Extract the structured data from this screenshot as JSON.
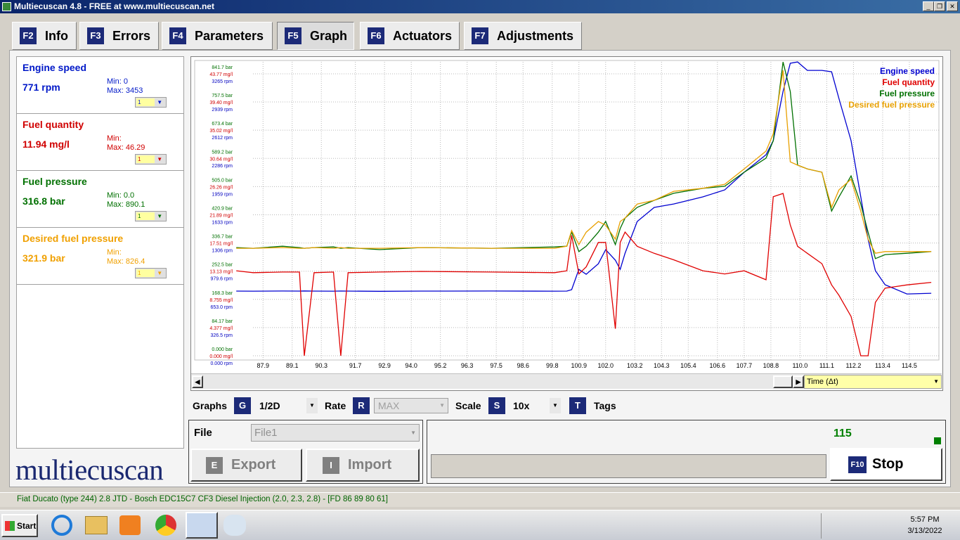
{
  "window": {
    "title": "Multiecuscan 4.8 - FREE at www.multiecuscan.net"
  },
  "tabs": [
    {
      "key": "F2",
      "label": "Info"
    },
    {
      "key": "F3",
      "label": "Errors"
    },
    {
      "key": "F4",
      "label": "Parameters"
    },
    {
      "key": "F5",
      "label": "Graph"
    },
    {
      "key": "F6",
      "label": "Actuators"
    },
    {
      "key": "F7",
      "label": "Adjustments"
    }
  ],
  "sensors": [
    {
      "name": "Engine speed",
      "value": "771 rpm",
      "min": "Min: 0",
      "max": "Max: 3453",
      "selector": "1",
      "color": "#0018c8"
    },
    {
      "name": "Fuel quantity",
      "value": "11.94 mg/l",
      "min": "Min:",
      "max": "Max: 46.29",
      "selector": "1",
      "color": "#d00000"
    },
    {
      "name": "Fuel pressure",
      "value": "316.8 bar",
      "min": "Min: 0.0",
      "max": "Max: 890.1",
      "selector": "1",
      "color": "#007000"
    },
    {
      "name": "Desired fuel pressure",
      "value": "321.9 bar",
      "min": "Min:",
      "max": "Max: 826.4",
      "selector": "1",
      "color": "#f0a000"
    }
  ],
  "chart_data": {
    "type": "line",
    "legend": "top-right",
    "grid": true,
    "x": [
      86.8,
      87.5,
      88.7,
      89.4,
      89.6,
      90.0,
      90.8,
      91.1,
      91.4,
      92.7,
      94.4,
      97.3,
      99.9,
      100.4,
      100.6,
      100.9,
      101.2,
      101.7,
      102.0,
      102.4,
      102.6,
      102.8,
      103.3,
      104.0,
      104.8,
      106.0,
      106.9,
      107.7,
      108.6,
      108.9,
      109.3,
      109.6,
      109.9,
      110.3,
      110.9,
      111.3,
      111.6,
      112.1,
      112.5,
      112.8,
      113.1,
      113.5,
      114.4,
      115.4
    ],
    "xlim": [
      85.0,
      115.6
    ],
    "xticks": [
      87.9,
      89.1,
      90.3,
      91.7,
      92.9,
      {
        "value": 94,
        "label": "94.0"
      },
      95.2,
      96.3,
      97.5,
      98.6,
      99.8,
      100.9,
      {
        "value": 102,
        "label": "102.0"
      },
      103.2,
      104.3,
      105.4,
      106.6,
      107.7,
      108.8,
      {
        "value": 110,
        "label": "110.0"
      },
      111.1,
      112.2,
      113.4,
      114.5
    ],
    "axes": [
      {
        "color": "#0000c0",
        "ylim": [
          0,
          3265
        ],
        "yticks": [
          {
            "value": 0,
            "label": "0.000 rpm"
          },
          {
            "value": 326.5,
            "label": "326.5 rpm"
          },
          {
            "value": 653,
            "label": "653.0 rpm"
          },
          {
            "value": 979.6,
            "label": "979.6 rpm"
          },
          {
            "value": 1306,
            "label": "1306 rpm"
          },
          {
            "value": 1633,
            "label": "1633 rpm"
          },
          {
            "value": 1959,
            "label": "1959 rpm"
          },
          {
            "value": 2286,
            "label": "2286 rpm"
          },
          {
            "value": 2612,
            "label": "2612 rpm"
          },
          {
            "value": 2939,
            "label": "2939 rpm"
          },
          {
            "value": 3265,
            "label": "3265 rpm"
          }
        ]
      },
      {
        "color": "#d00000",
        "ylim": [
          0,
          43.77
        ],
        "yticks": [
          {
            "value": 0,
            "label": "0.000 mg/l"
          },
          {
            "value": 4.377,
            "label": "4.377 mg/l"
          },
          {
            "value": 8.755,
            "label": "8.755 mg/l"
          },
          {
            "value": 13.13,
            "label": "13.13 mg/l"
          },
          {
            "value": 17.51,
            "label": "17.51 mg/l"
          },
          {
            "value": 21.89,
            "label": "21.89 mg/l"
          },
          {
            "value": 26.26,
            "label": "26.26 mg/l"
          },
          {
            "value": 30.64,
            "label": "30.64 mg/l"
          },
          {
            "value": 35.02,
            "label": "35.02 mg/l"
          },
          {
            "value": 39.4,
            "label": "39.40 mg/l"
          },
          {
            "value": 43.77,
            "label": "43.77 mg/l"
          }
        ]
      },
      {
        "color": "#007000",
        "ylim": [
          0,
          841.7
        ],
        "yticks": [
          {
            "value": 0,
            "label": "0.000 bar"
          },
          {
            "value": 84.17,
            "label": "84.17 bar"
          },
          {
            "value": 168.3,
            "label": "168.3 bar"
          },
          {
            "value": 252.5,
            "label": "252.5 bar"
          },
          {
            "value": 336.7,
            "label": "336.7 bar"
          },
          {
            "value": 420.9,
            "label": "420.9 bar"
          },
          {
            "value": 505,
            "label": "505.0 bar"
          },
          {
            "value": 589.2,
            "label": "589.2 bar"
          },
          {
            "value": 673.4,
            "label": "673.4 bar"
          },
          {
            "value": 757.5,
            "label": "757.5 bar"
          },
          {
            "value": 841.7,
            "label": "841.7 bar"
          }
        ]
      }
    ],
    "series": [
      {
        "name": "Engine speed",
        "color": "#0000d0",
        "axis": 0,
        "values": [
          749,
          748,
          750,
          749,
          751,
          749,
          748,
          750,
          749,
          747,
          749,
          750,
          748,
          749,
          765,
          1001,
          944,
          1066,
          1229,
          1107,
          1001,
          1188,
          1555,
          1718,
          1758,
          1840,
          1921,
          2125,
          2328,
          2491,
          3061,
          3387,
          3403,
          3305,
          3305,
          3289,
          2980,
          2491,
          1840,
          1351,
          985,
          822,
          716,
          724
        ]
      },
      {
        "name": "Fuel quantity",
        "color": "#e00000",
        "axis": 1,
        "values": [
          13.2,
          12.9,
          13.0,
          13.0,
          0.0,
          12.9,
          13.0,
          0.0,
          12.9,
          13.0,
          13.1,
          13.0,
          12.9,
          13.2,
          18.7,
          12.7,
          13.8,
          17.6,
          17.6,
          4.2,
          17.6,
          19.2,
          17.0,
          15.9,
          14.9,
          13.2,
          12.7,
          13.2,
          11.8,
          24.7,
          25.2,
          20.3,
          17.0,
          15.9,
          14.3,
          11.0,
          9.4,
          6.1,
          0.0,
          0.0,
          8.3,
          10.5,
          11.0,
          11.4
        ]
      },
      {
        "name": "Fuel pressure",
        "color": "#007000",
        "axis": 2,
        "values": [
          323,
          321,
          327,
          323,
          321,
          323,
          325,
          321,
          323,
          317,
          323,
          321,
          325,
          327,
          369,
          311,
          327,
          369,
          401,
          332,
          380,
          411,
          443,
          464,
          485,
          500,
          506,
          548,
          590,
          642,
          877,
          789,
          569,
          558,
          548,
          432,
          474,
          537,
          453,
          369,
          290,
          302,
          306,
          311
        ]
      },
      {
        "name": "Desired fuel pressure",
        "color": "#e8a000",
        "axis": 2,
        "values": [
          321,
          321,
          323,
          321,
          321,
          323,
          321,
          323,
          321,
          321,
          323,
          321,
          321,
          327,
          374,
          332,
          369,
          401,
          390,
          348,
          401,
          411,
          453,
          464,
          491,
          500,
          512,
          558,
          611,
          663,
          852,
          579,
          569,
          558,
          548,
          443,
          495,
          527,
          432,
          348,
          306,
          311,
          311,
          311
        ]
      }
    ],
    "time_selector": "Time (Δt)"
  },
  "controls": {
    "graphs_label": "Graphs",
    "graphs_key": "G",
    "graphs_value": "1/2D",
    "rate_label": "Rate",
    "rate_key": "R",
    "rate_value": "MAX",
    "scale_label": "Scale",
    "scale_key": "S",
    "scale_value": "10x",
    "tags_key": "T",
    "tags_label": "Tags"
  },
  "file": {
    "label": "File",
    "value": "File1",
    "export_key": "E",
    "export": "Export",
    "import_key": "I",
    "import": "Import"
  },
  "progress": {
    "counter": "115",
    "stop_key": "F10",
    "stop": "Stop"
  },
  "logo": "multiecuscan",
  "status_bar": "Fiat Ducato (type 244) 2.8 JTD - Bosch EDC15C7 CF3 Diesel Injection (2.0, 2.3, 2.8) - [FD 86 89 80 61]",
  "taskbar": {
    "start": "Start",
    "time": "5:57 PM",
    "date": "3/13/2022"
  }
}
